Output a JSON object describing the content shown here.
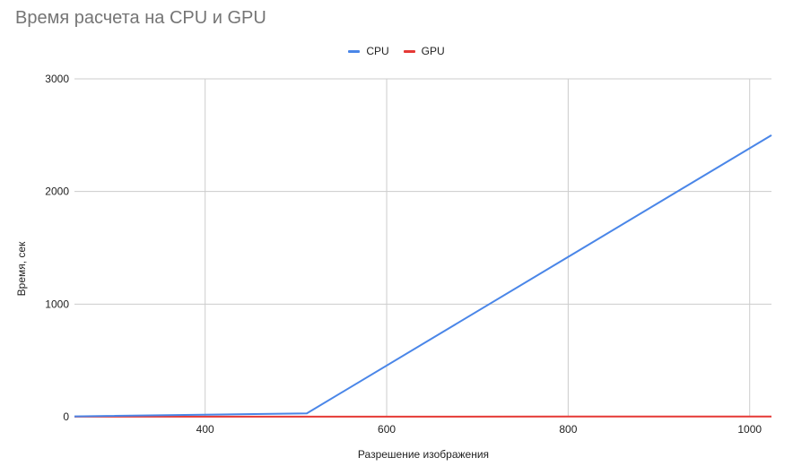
{
  "chart": {
    "title": "Время расчета на CPU и GPU",
    "xlabel": "Разрешение изображения",
    "ylabel": "Время, сек",
    "legend": [
      {
        "name": "CPU",
        "color": "#4a86e8"
      },
      {
        "name": "GPU",
        "color": "#e53935"
      }
    ]
  },
  "chart_data": {
    "type": "line",
    "title": "Время расчета на CPU и GPU",
    "xlabel": "Разрешение изображения",
    "ylabel": "Время, сек",
    "x": [
      256,
      512,
      1024
    ],
    "series": [
      {
        "name": "CPU",
        "color": "#4a86e8",
        "values": [
          3,
          30,
          2500
        ]
      },
      {
        "name": "GPU",
        "color": "#e53935",
        "values": [
          0.5,
          1,
          2
        ]
      }
    ],
    "xlim": [
      256,
      1024
    ],
    "ylim": [
      0,
      3000
    ],
    "xticks": [
      400,
      600,
      800,
      1000
    ],
    "yticks": [
      0,
      1000,
      2000,
      3000
    ],
    "grid": true,
    "legend_position": "top"
  }
}
